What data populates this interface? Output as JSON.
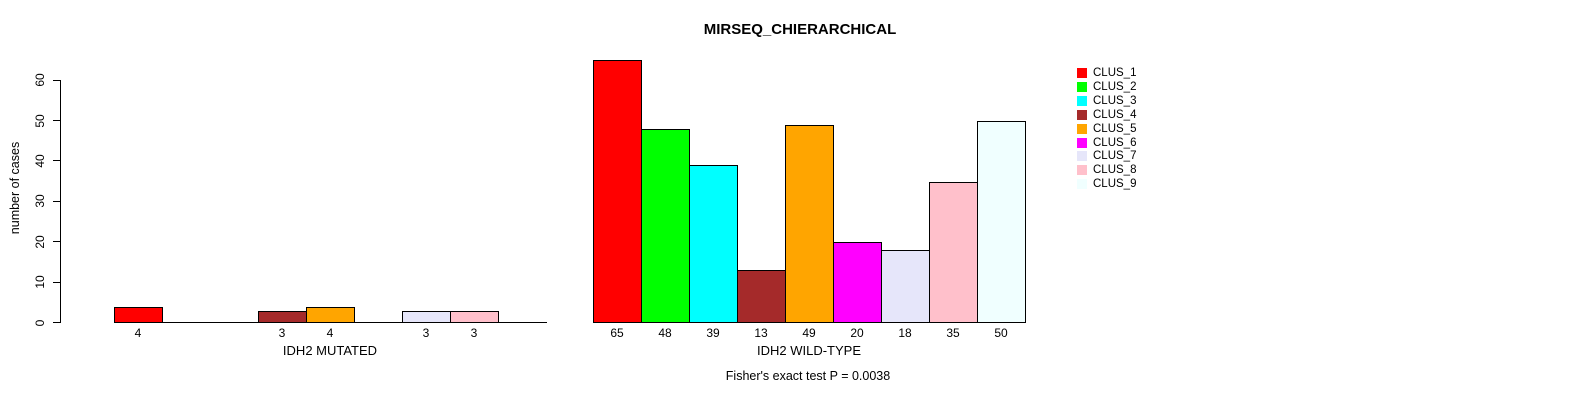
{
  "chart_data": {
    "type": "bar",
    "title": "MIRSEQ_CHIERARCHICAL",
    "ylabel": "number of cases",
    "yticks": [
      0,
      10,
      20,
      30,
      40,
      50,
      60
    ],
    "ylim": [
      0,
      65
    ],
    "grid": false,
    "categories": [
      "CLUS_1",
      "CLUS_2",
      "CLUS_3",
      "CLUS_4",
      "CLUS_5",
      "CLUS_6",
      "CLUS_7",
      "CLUS_8",
      "CLUS_9"
    ],
    "colors": [
      "#FF0000",
      "#00FF00",
      "#00FFFF",
      "#A52A2A",
      "#FFA500",
      "#FF00FF",
      "#E6E6FA",
      "#FFC0CB",
      "#F0FFFF"
    ],
    "panels": [
      {
        "xlabel": "IDH2 MUTATED",
        "values": [
          4,
          0,
          0,
          3,
          4,
          0,
          3,
          3,
          0
        ],
        "bar_labels": [
          "4",
          "",
          "",
          "3",
          "4",
          "",
          "3",
          "3",
          ""
        ]
      },
      {
        "xlabel": "IDH2 WILD-TYPE",
        "values": [
          65,
          48,
          39,
          13,
          49,
          20,
          18,
          35,
          50
        ],
        "bar_labels": [
          "65",
          "48",
          "39",
          "13",
          "49",
          "20",
          "18",
          "35",
          "50"
        ]
      }
    ],
    "legend": {
      "position": "right",
      "items": [
        {
          "label": "CLUS_1",
          "color": "#FF0000"
        },
        {
          "label": "CLUS_2",
          "color": "#00FF00"
        },
        {
          "label": "CLUS_3",
          "color": "#00FFFF"
        },
        {
          "label": "CLUS_4",
          "color": "#A52A2A"
        },
        {
          "label": "CLUS_5",
          "color": "#FFA500"
        },
        {
          "label": "CLUS_6",
          "color": "#FF00FF"
        },
        {
          "label": "CLUS_7",
          "color": "#E6E6FA"
        },
        {
          "label": "CLUS_8",
          "color": "#FFC0CB"
        },
        {
          "label": "CLUS_9",
          "color": "#F0FFFF"
        }
      ]
    },
    "footnote": "Fisher's exact test P = 0.0038"
  }
}
